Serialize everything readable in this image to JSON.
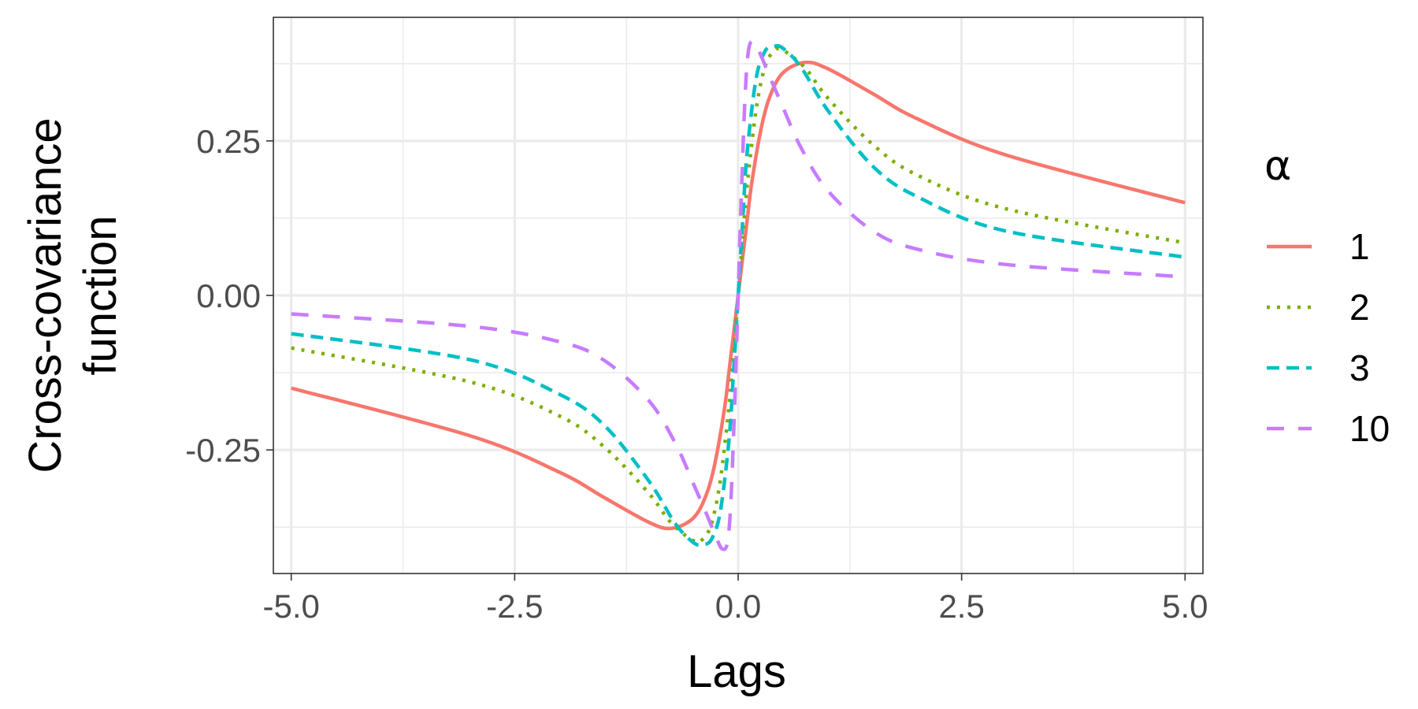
{
  "chart_data": {
    "type": "line",
    "xlabel": "Lags",
    "ylabel_lines": [
      "Cross-covariance",
      "function"
    ],
    "xlim": [
      -5.2,
      5.2
    ],
    "ylim": [
      -0.45,
      0.45
    ],
    "x_ticks": [
      -5.0,
      -2.5,
      0.0,
      2.5,
      5.0
    ],
    "x_tick_labels": [
      "-5.0",
      "-2.5",
      "0.0",
      "2.5",
      "5.0"
    ],
    "y_ticks": [
      -0.25,
      0.0,
      0.25
    ],
    "y_tick_labels": [
      "-0.25",
      "0.00",
      "0.25"
    ],
    "grid": true,
    "legend": {
      "title": "α",
      "position": "right"
    },
    "series": [
      {
        "name": "1",
        "color": "#F8766D",
        "dash": "solid",
        "x": [
          -5.0,
          -3.0,
          -2.0,
          -1.5,
          -1.0,
          -0.75,
          -0.5,
          -0.35,
          -0.25,
          -0.15,
          -0.1,
          -0.05,
          0.0,
          0.05,
          0.1,
          0.15,
          0.25,
          0.35,
          0.5,
          0.75,
          1.0,
          1.5,
          2.0,
          3.0,
          5.0
        ],
        "y": [
          -0.15,
          -0.227,
          -0.286,
          -0.327,
          -0.367,
          -0.377,
          -0.36,
          -0.32,
          -0.265,
          -0.18,
          -0.12,
          -0.061,
          0.0,
          0.061,
          0.12,
          0.18,
          0.265,
          0.32,
          0.36,
          0.377,
          0.367,
          0.327,
          0.286,
          0.227,
          0.15
        ]
      },
      {
        "name": "2",
        "color": "#7CAE00",
        "dash": "dotted",
        "x": [
          -5.0,
          -3.0,
          -2.0,
          -1.5,
          -1.0,
          -0.75,
          -0.5,
          -0.4,
          -0.3,
          -0.2,
          -0.1,
          -0.05,
          0.0,
          0.05,
          0.1,
          0.2,
          0.3,
          0.4,
          0.5,
          0.75,
          1.0,
          1.5,
          2.0,
          3.0,
          5.0
        ],
        "y": [
          -0.085,
          -0.14,
          -0.195,
          -0.245,
          -0.32,
          -0.368,
          -0.397,
          -0.395,
          -0.37,
          -0.3,
          -0.175,
          -0.09,
          0.0,
          0.09,
          0.175,
          0.3,
          0.37,
          0.395,
          0.397,
          0.368,
          0.32,
          0.245,
          0.195,
          0.14,
          0.085
        ]
      },
      {
        "name": "3",
        "color": "#00BFC4",
        "dash": "dashed",
        "x": [
          -5.0,
          -3.0,
          -2.0,
          -1.5,
          -1.0,
          -0.7,
          -0.5,
          -0.4,
          -0.3,
          -0.2,
          -0.1,
          -0.05,
          0.0,
          0.05,
          0.1,
          0.2,
          0.3,
          0.4,
          0.5,
          0.7,
          1.0,
          1.5,
          2.0,
          3.0,
          5.0
        ],
        "y": [
          -0.062,
          -0.104,
          -0.16,
          -0.21,
          -0.3,
          -0.37,
          -0.4,
          -0.403,
          -0.395,
          -0.35,
          -0.23,
          -0.12,
          0.0,
          0.12,
          0.23,
          0.35,
          0.395,
          0.403,
          0.4,
          0.37,
          0.3,
          0.21,
          0.16,
          0.104,
          0.062
        ]
      },
      {
        "name": "10",
        "color": "#C77CFF",
        "dash": "longdash",
        "x": [
          -5.0,
          -3.0,
          -2.0,
          -1.5,
          -1.0,
          -0.7,
          -0.5,
          -0.35,
          -0.25,
          -0.18,
          -0.12,
          -0.08,
          -0.04,
          0.0,
          0.04,
          0.08,
          0.12,
          0.18,
          0.25,
          0.35,
          0.5,
          0.7,
          1.0,
          1.5,
          2.0,
          3.0,
          5.0
        ],
        "y": [
          -0.03,
          -0.05,
          -0.075,
          -0.105,
          -0.17,
          -0.24,
          -0.305,
          -0.355,
          -0.39,
          -0.41,
          -0.4,
          -0.33,
          -0.18,
          0.0,
          0.18,
          0.33,
          0.4,
          0.41,
          0.39,
          0.355,
          0.305,
          0.24,
          0.17,
          0.105,
          0.075,
          0.05,
          0.03
        ]
      }
    ]
  }
}
